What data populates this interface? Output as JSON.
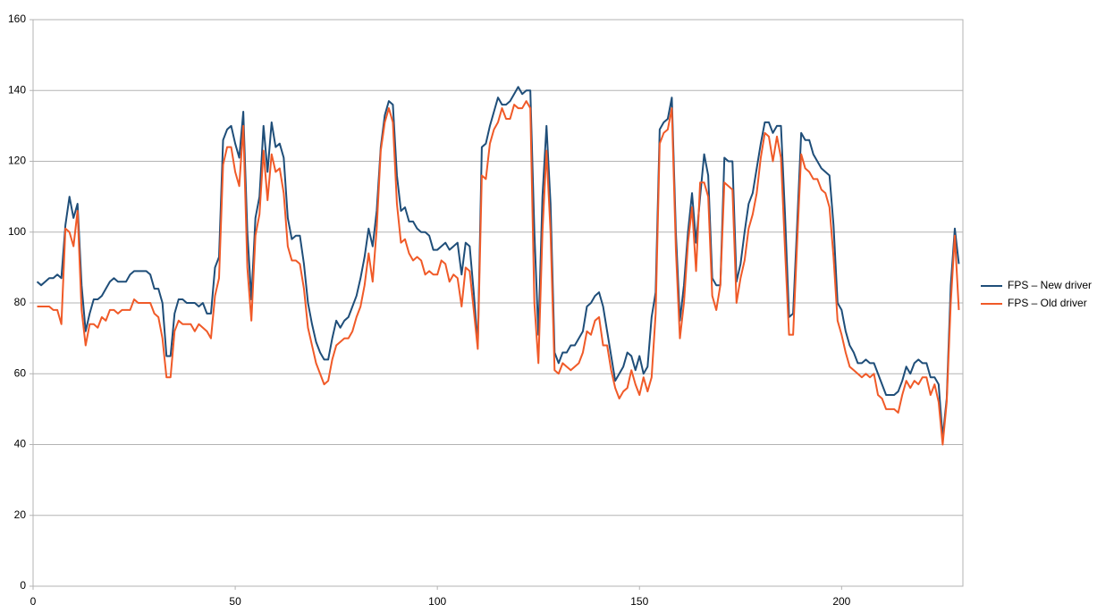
{
  "chart_data": {
    "type": "line",
    "x": [
      1,
      2,
      3,
      4,
      5,
      6,
      7,
      8,
      9,
      10,
      11,
      12,
      13,
      14,
      15,
      16,
      17,
      18,
      19,
      20,
      21,
      22,
      23,
      24,
      25,
      26,
      27,
      28,
      29,
      30,
      31,
      32,
      33,
      34,
      35,
      36,
      37,
      38,
      39,
      40,
      41,
      42,
      43,
      44,
      45,
      46,
      47,
      48,
      49,
      50,
      51,
      52,
      53,
      54,
      55,
      56,
      57,
      58,
      59,
      60,
      61,
      62,
      63,
      64,
      65,
      66,
      67,
      68,
      69,
      70,
      71,
      72,
      73,
      74,
      75,
      76,
      77,
      78,
      79,
      80,
      81,
      82,
      83,
      84,
      85,
      86,
      87,
      88,
      89,
      90,
      91,
      92,
      93,
      94,
      95,
      96,
      97,
      98,
      99,
      100,
      101,
      102,
      103,
      104,
      105,
      106,
      107,
      108,
      109,
      110,
      111,
      112,
      113,
      114,
      115,
      116,
      117,
      118,
      119,
      120,
      121,
      122,
      123,
      124,
      125,
      126,
      127,
      128,
      129,
      130,
      131,
      132,
      133,
      134,
      135,
      136,
      137,
      138,
      139,
      140,
      141,
      142,
      143,
      144,
      145,
      146,
      147,
      148,
      149,
      150,
      151,
      152,
      153,
      154,
      155,
      156,
      157,
      158,
      159,
      160,
      161,
      162,
      163,
      164,
      165,
      166,
      167,
      168,
      169,
      170,
      171,
      172,
      173,
      174,
      175,
      176,
      177,
      178,
      179,
      180,
      181,
      182,
      183,
      184,
      185,
      186,
      187,
      188,
      189,
      190,
      191,
      192,
      193,
      194,
      195,
      196,
      197,
      198,
      199,
      200,
      201,
      202,
      203,
      204,
      205,
      206,
      207,
      208,
      209,
      210,
      211,
      212,
      213,
      214,
      215,
      216,
      217,
      218,
      219,
      220,
      221,
      222,
      223,
      224,
      225,
      226,
      227,
      228,
      229
    ],
    "series": [
      {
        "name": "FPS – New driver",
        "color": "#1f4e79",
        "values": [
          86,
          85,
          86,
          87,
          87,
          88,
          87,
          102,
          110,
          104,
          108,
          85,
          72,
          77,
          81,
          81,
          82,
          84,
          86,
          87,
          86,
          86,
          86,
          88,
          89,
          89,
          89,
          89,
          88,
          84,
          84,
          80,
          65,
          65,
          77,
          81,
          81,
          80,
          80,
          80,
          79,
          80,
          77,
          77,
          90,
          93,
          126,
          129,
          130,
          125,
          121,
          134,
          100,
          81,
          104,
          110,
          130,
          117,
          131,
          124,
          125,
          121,
          104,
          98,
          99,
          99,
          91,
          80,
          74,
          69,
          66,
          64,
          64,
          70,
          75,
          73,
          75,
          76,
          79,
          82,
          87,
          93,
          101,
          96,
          106,
          124,
          133,
          137,
          136,
          116,
          106,
          107,
          103,
          103,
          101,
          100,
          100,
          99,
          95,
          95,
          96,
          97,
          95,
          96,
          97,
          88,
          97,
          96,
          83,
          68,
          124,
          125,
          130,
          134,
          138,
          136,
          136,
          137,
          139,
          141,
          139,
          140,
          140,
          100,
          71,
          110,
          130,
          108,
          66,
          63,
          66,
          66,
          68,
          68,
          70,
          72,
          79,
          80,
          82,
          83,
          79,
          72,
          65,
          58,
          60,
          62,
          66,
          65,
          61,
          65,
          60,
          62,
          76,
          83,
          129,
          131,
          132,
          138,
          100,
          75,
          85,
          100,
          111,
          97,
          110,
          122,
          116,
          87,
          85,
          85,
          121,
          120,
          120,
          86,
          91,
          100,
          108,
          111,
          118,
          125,
          131,
          131,
          128,
          130,
          130,
          105,
          76,
          77,
          102,
          128,
          126,
          126,
          122,
          120,
          118,
          117,
          116,
          102,
          80,
          78,
          72,
          68,
          66,
          63,
          63,
          64,
          63,
          63,
          60,
          57,
          54,
          54,
          54,
          55,
          58,
          62,
          60,
          63,
          64,
          63,
          63,
          59,
          59,
          57,
          42,
          53,
          85,
          101,
          91
        ]
      },
      {
        "name": "FPS – Old driver",
        "color": "#f05a28",
        "values": [
          79,
          79,
          79,
          79,
          78,
          78,
          74,
          101,
          100,
          96,
          106,
          78,
          68,
          74,
          74,
          73,
          76,
          75,
          78,
          78,
          77,
          78,
          78,
          78,
          81,
          80,
          80,
          80,
          80,
          77,
          76,
          70,
          59,
          59,
          72,
          75,
          74,
          74,
          74,
          72,
          74,
          73,
          72,
          70,
          82,
          87,
          119,
          124,
          124,
          117,
          113,
          130,
          90,
          75,
          99,
          105,
          123,
          109,
          122,
          117,
          118,
          111,
          96,
          92,
          92,
          91,
          84,
          73,
          68,
          63,
          60,
          57,
          58,
          64,
          68,
          69,
          70,
          70,
          72,
          76,
          79,
          85,
          94,
          86,
          101,
          123,
          131,
          135,
          131,
          108,
          97,
          98,
          94,
          92,
          93,
          92,
          88,
          89,
          88,
          88,
          92,
          91,
          86,
          88,
          87,
          79,
          90,
          89,
          78,
          67,
          116,
          115,
          125,
          129,
          131,
          135,
          132,
          132,
          136,
          135,
          135,
          137,
          135,
          80,
          63,
          100,
          123,
          100,
          61,
          60,
          63,
          62,
          61,
          62,
          63,
          66,
          72,
          71,
          75,
          76,
          68,
          68,
          61,
          56,
          53,
          55,
          56,
          61,
          57,
          54,
          59,
          55,
          59,
          77,
          125,
          128,
          129,
          135,
          95,
          70,
          80,
          97,
          107,
          89,
          114,
          114,
          110,
          82,
          78,
          85,
          114,
          113,
          112,
          80,
          87,
          92,
          101,
          105,
          111,
          121,
          128,
          127,
          120,
          127,
          121,
          95,
          71,
          71,
          97,
          122,
          118,
          117,
          115,
          115,
          112,
          111,
          107,
          93,
          75,
          71,
          66,
          62,
          61,
          60,
          59,
          60,
          59,
          60,
          54,
          53,
          50,
          50,
          50,
          49,
          54,
          58,
          56,
          58,
          57,
          59,
          59,
          54,
          57,
          52,
          40,
          52,
          80,
          99,
          78
        ]
      }
    ],
    "xlim": [
      0,
      230
    ],
    "xticks": [
      0,
      50,
      100,
      150,
      200
    ],
    "ylim": [
      0,
      160
    ],
    "yticks": [
      0,
      20,
      40,
      60,
      80,
      100,
      120,
      140,
      160
    ],
    "grid": true,
    "legend": "right"
  }
}
